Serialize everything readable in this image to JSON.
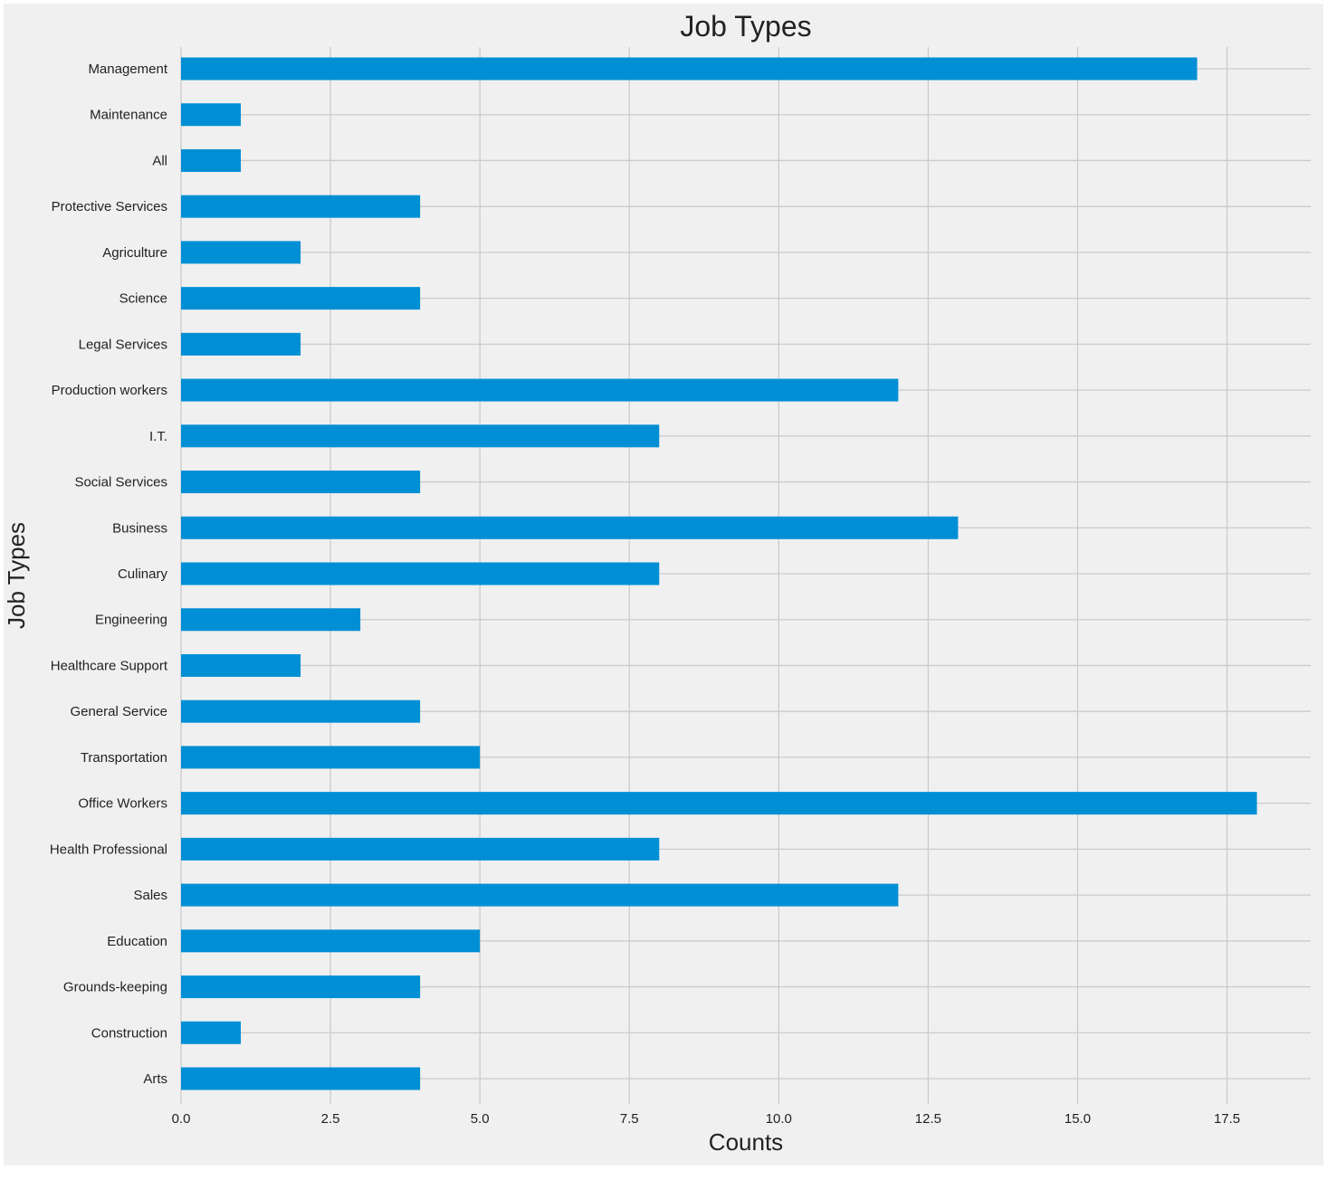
{
  "chart_data": {
    "type": "bar",
    "orientation": "horizontal",
    "title": "Job Types",
    "xlabel": "Counts",
    "ylabel": "Job Types",
    "categories": [
      "Arts",
      "Construction",
      "Grounds-keeping",
      "Education",
      "Sales",
      "Health Professional",
      "Office Workers",
      "Transportation",
      "General Service",
      "Healthcare Support",
      "Engineering",
      "Culinary",
      "Business",
      "Social Services",
      "I.T.",
      "Production workers",
      "Legal Services",
      "Science",
      "Agriculture",
      "Protective Services",
      "All",
      "Maintenance",
      "Management"
    ],
    "values": [
      4,
      1,
      4,
      5,
      12,
      8,
      18,
      5,
      4,
      2,
      3,
      8,
      13,
      4,
      8,
      12,
      2,
      4,
      2,
      4,
      1,
      1,
      17
    ],
    "xlim": [
      0,
      18.9
    ],
    "xticks": [
      "0.0",
      "2.5",
      "5.0",
      "7.5",
      "10.0",
      "12.5",
      "15.0",
      "17.5"
    ],
    "grid": true,
    "colors": {
      "bar": "#008fd5",
      "plot_background": "#f0f0f0",
      "grid": "#cbcbcb"
    }
  }
}
